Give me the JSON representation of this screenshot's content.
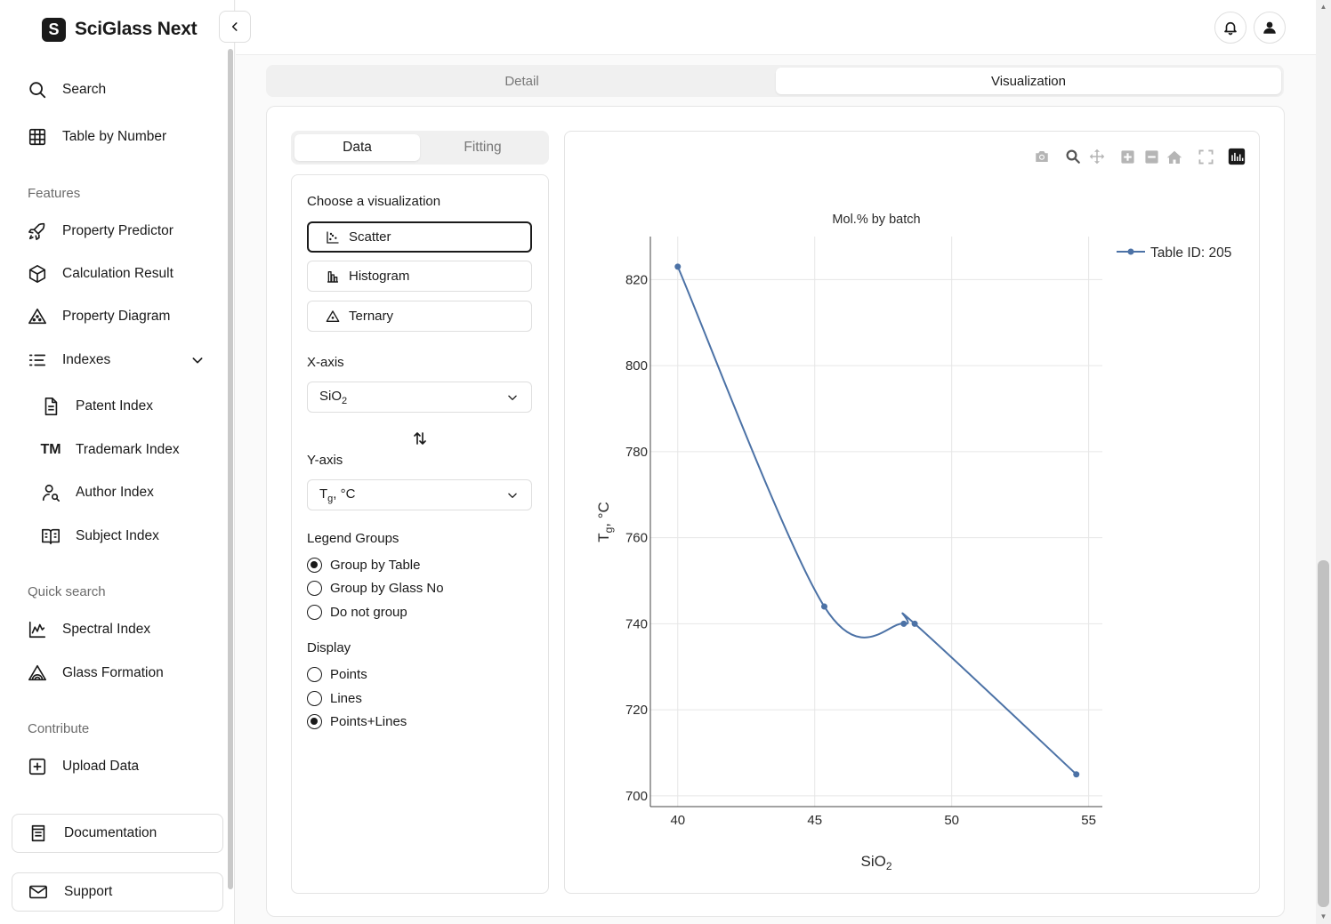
{
  "app": {
    "logo_letter": "S",
    "name": "SciGlass Next"
  },
  "sidebar": {
    "top_items": [
      {
        "label": "Search",
        "icon": "search-icon"
      },
      {
        "label": "Table by Number",
        "icon": "table-icon"
      }
    ],
    "features_title": "Features",
    "features": [
      {
        "label": "Property Predictor",
        "icon": "rocket-icon"
      },
      {
        "label": "Calculation Result",
        "icon": "cube-icon"
      },
      {
        "label": "Property Diagram",
        "icon": "triangle-icon"
      },
      {
        "label": "Indexes",
        "icon": "list-icon"
      }
    ],
    "index_items": [
      {
        "label": "Patent Index",
        "icon": "document-icon"
      },
      {
        "label": "Trademark Index",
        "icon": "trademark-icon"
      },
      {
        "label": "Author Index",
        "icon": "user-search-icon"
      },
      {
        "label": "Subject Index",
        "icon": "book-icon"
      }
    ],
    "quick_title": "Quick search",
    "quick_items": [
      {
        "label": "Spectral Index",
        "icon": "spectrum-icon"
      },
      {
        "label": "Glass Formation",
        "icon": "glass-formation-icon"
      }
    ],
    "contribute_title": "Contribute",
    "contribute_items": [
      {
        "label": "Upload Data",
        "icon": "plus-square-icon"
      }
    ],
    "bottom_cards": [
      {
        "label": "Documentation",
        "icon": "book-doc-icon"
      },
      {
        "label": "Support",
        "icon": "mail-icon"
      }
    ]
  },
  "main_tabs": [
    "Detail",
    "Visualization"
  ],
  "sub_tabs": [
    "Data",
    "Fitting"
  ],
  "controls": {
    "choose_title": "Choose a visualization",
    "visualizations": [
      "Scatter",
      "Histogram",
      "Ternary"
    ],
    "selected_visualization": "Scatter",
    "x_axis_label": "X-axis",
    "x_axis_value": "SiO",
    "x_axis_sub": "2",
    "y_axis_label": "Y-axis",
    "y_axis_value": "T",
    "y_axis_sub": "g",
    "y_axis_suffix": ", °C",
    "legend_groups_title": "Legend Groups",
    "legend_groups": [
      "Group by Table",
      "Group by Glass No",
      "Do not group"
    ],
    "legend_group_selected": "Group by Table",
    "display_title": "Display",
    "display_options": [
      "Points",
      "Lines",
      "Points+Lines"
    ],
    "display_selected": "Points+Lines"
  },
  "chart_data": {
    "type": "line",
    "title": "Mol.% by batch",
    "xlabel": "SiO2",
    "ylabel": "Tg, °C",
    "xlim": [
      39,
      55.5
    ],
    "ylim": [
      697.5,
      830
    ],
    "xticks": [
      40,
      45,
      50,
      55
    ],
    "yticks": [
      700,
      720,
      740,
      760,
      780,
      800,
      820
    ],
    "grid": true,
    "legend_position": "top-right",
    "series": [
      {
        "name": "Table ID: 205",
        "color": "#4c72a6",
        "mode": "lines+markers",
        "line_shape": "spline",
        "x": [
          40.0,
          45.35,
          48.25,
          48.65,
          54.55
        ],
        "y": [
          823,
          744,
          740,
          740,
          705
        ]
      }
    ]
  }
}
